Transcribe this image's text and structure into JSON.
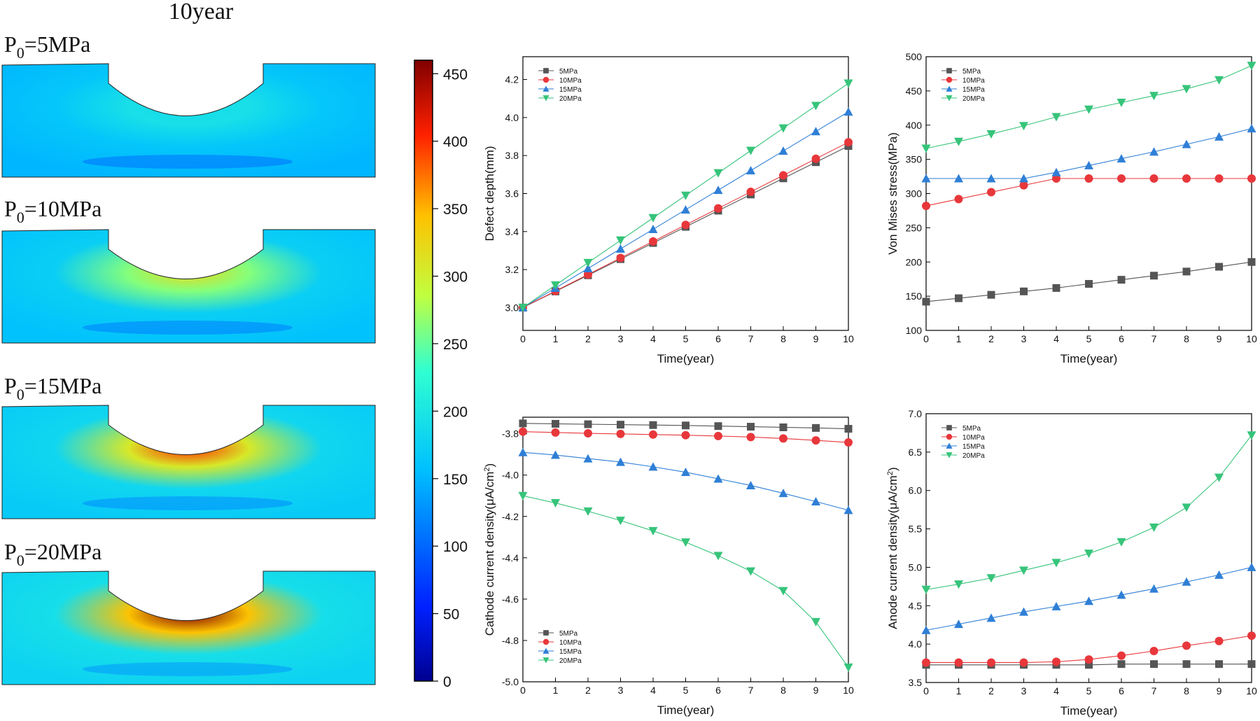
{
  "figure": {
    "header": "10year",
    "contours": [
      {
        "label_prefix": "P",
        "label_sub": "0",
        "label_suffix": "=5MPa",
        "pressure": 5,
        "bottom_stress_level": 190
      },
      {
        "label_prefix": "P",
        "label_sub": "0",
        "label_suffix": "=10MPa",
        "pressure": 10,
        "bottom_stress_level": 320
      },
      {
        "label_prefix": "P",
        "label_sub": "0",
        "label_suffix": "=15MPa",
        "pressure": 15,
        "bottom_stress_level": 400
      },
      {
        "label_prefix": "P",
        "label_sub": "0",
        "label_suffix": "=20MPa",
        "pressure": 20,
        "bottom_stress_level": 460
      }
    ],
    "colorbar": {
      "min": 0,
      "max": 460,
      "ticks": [
        "0",
        "50",
        "100",
        "150",
        "200",
        "250",
        "300",
        "350",
        "400",
        "450"
      ],
      "tick_values": [
        0,
        50,
        100,
        150,
        200,
        250,
        300,
        350,
        400,
        450
      ]
    },
    "colors": {
      "s5": "#555555",
      "s10": "#e8373b",
      "s15": "#2f7fd6",
      "s20": "#36c47a"
    }
  },
  "chart_data": [
    {
      "type": "line",
      "xlabel": "Time(year)",
      "ylabel": "Defect depth(mm)",
      "x": [
        0,
        1,
        2,
        3,
        4,
        5,
        6,
        7,
        8,
        9,
        10
      ],
      "xticks": [
        "0",
        "1",
        "2",
        "3",
        "4",
        "5",
        "6",
        "7",
        "8",
        "9",
        "10"
      ],
      "xlim": [
        0,
        10
      ],
      "ylim": [
        2.88,
        4.32
      ],
      "yticks": [
        "3.0",
        "3.2",
        "3.4",
        "3.6",
        "3.8",
        "4.0",
        "4.2"
      ],
      "ytick_values": [
        3.0,
        3.2,
        3.4,
        3.6,
        3.8,
        4.0,
        4.2
      ],
      "legend_position": "top-left",
      "series": [
        {
          "name": "5MPa",
          "values": [
            3.0,
            3.085,
            3.17,
            3.255,
            3.34,
            3.425,
            3.51,
            3.595,
            3.68,
            3.765,
            3.85
          ]
        },
        {
          "name": "10MPa",
          "values": [
            3.0,
            3.087,
            3.174,
            3.261,
            3.348,
            3.435,
            3.522,
            3.609,
            3.696,
            3.783,
            3.87
          ]
        },
        {
          "name": "15MPa",
          "values": [
            3.0,
            3.103,
            3.206,
            3.309,
            3.412,
            3.515,
            3.618,
            3.721,
            3.824,
            3.927,
            4.03
          ]
        },
        {
          "name": "20MPa",
          "values": [
            3.0,
            3.118,
            3.236,
            3.354,
            3.472,
            3.59,
            3.708,
            3.826,
            3.944,
            4.062,
            4.18
          ]
        }
      ]
    },
    {
      "type": "line",
      "xlabel": "Time(year)",
      "ylabel": "Von Mises stress(MPa)",
      "x": [
        0,
        1,
        2,
        3,
        4,
        5,
        6,
        7,
        8,
        9,
        10
      ],
      "xticks": [
        "0",
        "1",
        "2",
        "3",
        "4",
        "5",
        "6",
        "7",
        "8",
        "9",
        "10"
      ],
      "xlim": [
        0,
        10
      ],
      "ylim": [
        100,
        500
      ],
      "yticks": [
        "100",
        "150",
        "200",
        "250",
        "300",
        "350",
        "400",
        "450",
        "500"
      ],
      "ytick_values": [
        100,
        150,
        200,
        250,
        300,
        350,
        400,
        450,
        500
      ],
      "legend_position": "top-left",
      "series": [
        {
          "name": "5MPa",
          "values": [
            142,
            147,
            152,
            157,
            162,
            168,
            174,
            180,
            186,
            193,
            200
          ]
        },
        {
          "name": "10MPa",
          "values": [
            282,
            292,
            302,
            312,
            322,
            322,
            322,
            322,
            322,
            322,
            322
          ]
        },
        {
          "name": "15MPa",
          "values": [
            322,
            322,
            322,
            322,
            331,
            341,
            351,
            361,
            372,
            383,
            395
          ]
        },
        {
          "name": "20MPa",
          "values": [
            366,
            376,
            387,
            399,
            412,
            423,
            433,
            443,
            453,
            466,
            487
          ]
        }
      ]
    },
    {
      "type": "line",
      "xlabel": "Time(year)",
      "ylabel_prefix": "Cathode current density(μA/cm",
      "ylabel_sup": "2",
      "ylabel_suffix": ")",
      "x": [
        0,
        1,
        2,
        3,
        4,
        5,
        6,
        7,
        8,
        9,
        10
      ],
      "xticks": [
        "0",
        "1",
        "2",
        "3",
        "4",
        "5",
        "6",
        "7",
        "8",
        "9",
        "10"
      ],
      "xlim": [
        0,
        10
      ],
      "ylim": [
        -5.0,
        -3.72
      ],
      "yticks": [
        "-3.8",
        "-4.0",
        "-4.2",
        "-4.4",
        "-4.6",
        "-4.8",
        "-5.0"
      ],
      "ytick_values": [
        -3.8,
        -4.0,
        -4.2,
        -4.4,
        -4.6,
        -4.8,
        -5.0
      ],
      "legend_position": "bottom-left",
      "series": [
        {
          "name": "5MPa",
          "values": [
            -3.75,
            -3.752,
            -3.754,
            -3.756,
            -3.758,
            -3.76,
            -3.763,
            -3.766,
            -3.769,
            -3.772,
            -3.776
          ]
        },
        {
          "name": "10MPa",
          "values": [
            -3.79,
            -3.794,
            -3.798,
            -3.801,
            -3.804,
            -3.807,
            -3.811,
            -3.816,
            -3.823,
            -3.832,
            -3.842
          ]
        },
        {
          "name": "15MPa",
          "values": [
            -3.89,
            -3.903,
            -3.92,
            -3.937,
            -3.96,
            -3.986,
            -4.018,
            -4.05,
            -4.088,
            -4.128,
            -4.17
          ]
        },
        {
          "name": "20MPa",
          "values": [
            -4.1,
            -4.135,
            -4.175,
            -4.22,
            -4.27,
            -4.325,
            -4.39,
            -4.465,
            -4.56,
            -4.71,
            -4.93
          ]
        }
      ]
    },
    {
      "type": "line",
      "xlabel": "Time(year)",
      "ylabel_prefix": "Anode current density(μA/cm",
      "ylabel_sup": "2",
      "ylabel_suffix": ")",
      "x": [
        0,
        1,
        2,
        3,
        4,
        5,
        6,
        7,
        8,
        9,
        10
      ],
      "xticks": [
        "0",
        "1",
        "2",
        "3",
        "4",
        "5",
        "6",
        "7",
        "8",
        "9",
        "10"
      ],
      "xlim": [
        0,
        10
      ],
      "ylim": [
        3.5,
        7.0
      ],
      "yticks": [
        "3.5",
        "4.0",
        "4.5",
        "5.0",
        "5.5",
        "6.0",
        "6.5",
        "7.0"
      ],
      "ytick_values": [
        3.5,
        4.0,
        4.5,
        5.0,
        5.5,
        6.0,
        6.5,
        7.0
      ],
      "legend_position": "top-left",
      "series": [
        {
          "name": "5MPa",
          "values": [
            3.73,
            3.73,
            3.73,
            3.73,
            3.73,
            3.73,
            3.74,
            3.74,
            3.74,
            3.74,
            3.74
          ]
        },
        {
          "name": "10MPa",
          "values": [
            3.76,
            3.76,
            3.76,
            3.76,
            3.77,
            3.8,
            3.85,
            3.91,
            3.98,
            4.04,
            4.11
          ]
        },
        {
          "name": "15MPa",
          "values": [
            4.18,
            4.26,
            4.34,
            4.42,
            4.49,
            4.56,
            4.64,
            4.72,
            4.81,
            4.9,
            5.0
          ]
        },
        {
          "name": "20MPa",
          "values": [
            4.71,
            4.78,
            4.86,
            4.96,
            5.06,
            5.18,
            5.33,
            5.52,
            5.78,
            6.17,
            6.72
          ]
        }
      ]
    }
  ]
}
